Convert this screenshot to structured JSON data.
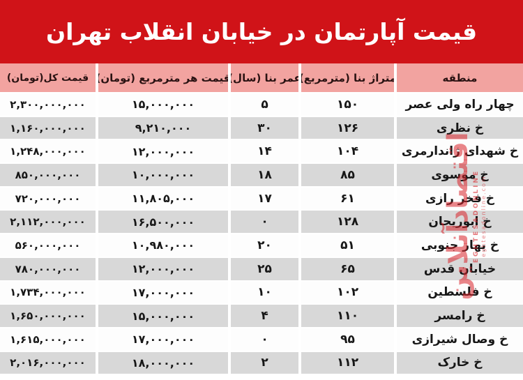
{
  "title": "قیمت آپارتمان در خیابان انقلاب تهران",
  "colors": {
    "banner_red": "#d01318",
    "header_pink": "#f2a3a0",
    "row_gray": "#d8d8d8",
    "row_white": "#fdfdfd",
    "watermark_red": "#d8232a",
    "text_dark": "#171717"
  },
  "watermark": {
    "fa": "اقتصادآنلاین",
    "en": "EGHTESADONLINE",
    "domain": "eghtesadonline.com"
  },
  "table": {
    "columns": [
      {
        "key": "region",
        "label": "منطقه"
      },
      {
        "key": "area",
        "label": "متراژ بنا (مترمربع)"
      },
      {
        "key": "age",
        "label": "عمر بنا (سال)"
      },
      {
        "key": "price_per_m2",
        "label": "قیمت هر مترمربع (تومان)"
      },
      {
        "key": "total_price",
        "label": "قیمت کل(تومان)"
      }
    ],
    "rows": [
      {
        "region": "چهار راه ولی عصر",
        "area": "۱۵۰",
        "age": "۵",
        "price_per_m2": "۱۵,۰۰۰,۰۰۰",
        "total_price": "۲,۳۰۰,۰۰۰,۰۰۰"
      },
      {
        "region": "خ نظری",
        "area": "۱۲۶",
        "age": "۳۰",
        "price_per_m2": "۹,۲۱۰,۰۰۰",
        "total_price": "۱,۱۶۰,۰۰۰,۰۰۰"
      },
      {
        "region": "خ شهدای ژاندارمری",
        "area": "۱۰۴",
        "age": "۱۴",
        "price_per_m2": "۱۲,۰۰۰,۰۰۰",
        "total_price": "۱,۲۴۸,۰۰۰,۰۰۰"
      },
      {
        "region": "خ موسوی",
        "area": "۸۵",
        "age": "۱۸",
        "price_per_m2": "۱۰,۰۰۰,۰۰۰",
        "total_price": "۸۵۰,۰۰۰,۰۰۰"
      },
      {
        "region": "خ فخر رازی",
        "area": "۶۱",
        "age": "۱۷",
        "price_per_m2": "۱۱,۸۰۵,۰۰۰",
        "total_price": "۷۲۰,۰۰۰,۰۰۰"
      },
      {
        "region": "خ ابوریحان",
        "area": "۱۲۸",
        "age": "۰",
        "price_per_m2": "۱۶,۵۰۰,۰۰۰",
        "total_price": "۲,۱۱۲,۰۰۰,۰۰۰"
      },
      {
        "region": "خ بهار جنوبی",
        "area": "۵۱",
        "age": "۲۰",
        "price_per_m2": "۱۰,۹۸۰,۰۰۰",
        "total_price": "۵۶۰,۰۰۰,۰۰۰"
      },
      {
        "region": "خیابان قدس",
        "area": "۶۵",
        "age": "۲۵",
        "price_per_m2": "۱۲,۰۰۰,۰۰۰",
        "total_price": "۷۸۰,۰۰۰,۰۰۰"
      },
      {
        "region": "خ فلسطین",
        "area": "۱۰۲",
        "age": "۱۰",
        "price_per_m2": "۱۷,۰۰۰,۰۰۰",
        "total_price": "۱,۷۳۴,۰۰۰,۰۰۰"
      },
      {
        "region": "خ رامسر",
        "area": "۱۱۰",
        "age": "۴",
        "price_per_m2": "۱۵,۰۰۰,۰۰۰",
        "total_price": "۱,۶۵۰,۰۰۰,۰۰۰"
      },
      {
        "region": "خ وصال شیرازی",
        "area": "۹۵",
        "age": "۰",
        "price_per_m2": "۱۷,۰۰۰,۰۰۰",
        "total_price": "۱,۶۱۵,۰۰۰,۰۰۰"
      },
      {
        "region": "خ خارک",
        "area": "۱۱۲",
        "age": "۲",
        "price_per_m2": "۱۸,۰۰۰,۰۰۰",
        "total_price": "۲,۰۱۶,۰۰۰,۰۰۰"
      }
    ]
  },
  "chart_data": {
    "type": "table",
    "title": "قیمت آپارتمان در خیابان انقلاب تهران",
    "columns": [
      "منطقه",
      "متراژ بنا (مترمربع)",
      "عمر بنا (سال)",
      "قیمت هر مترمربع (تومان)",
      "قیمت کل(تومان)"
    ],
    "rows": [
      [
        "چهار راه ولی عصر",
        150,
        5,
        15000000,
        2300000000
      ],
      [
        "خ نظری",
        126,
        30,
        9210000,
        1160000000
      ],
      [
        "خ شهدای ژاندارمری",
        104,
        14,
        12000000,
        1248000000
      ],
      [
        "خ موسوی",
        85,
        18,
        10000000,
        850000000
      ],
      [
        "خ فخر رازی",
        61,
        17,
        11805000,
        720000000
      ],
      [
        "خ ابوریحان",
        128,
        0,
        16500000,
        2112000000
      ],
      [
        "خ بهار جنوبی",
        51,
        20,
        10980000,
        560000000
      ],
      [
        "خیابان قدس",
        65,
        25,
        12000000,
        780000000
      ],
      [
        "خ فلسطین",
        102,
        10,
        17000000,
        1734000000
      ],
      [
        "خ رامسر",
        110,
        4,
        15000000,
        1650000000
      ],
      [
        "خ وصال شیرازی",
        95,
        0,
        17000000,
        1615000000
      ],
      [
        "خ خارک",
        112,
        2,
        18000000,
        2016000000
      ]
    ]
  }
}
